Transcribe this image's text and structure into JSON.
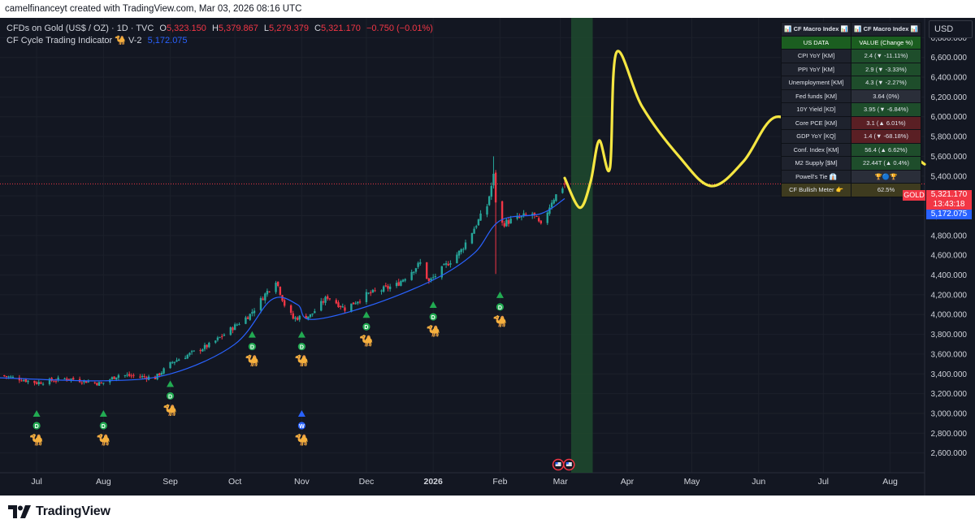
{
  "topbar": {
    "text": "camelfinanceyt created with TradingView.com, Mar 03, 2026 08:16 UTC"
  },
  "legend": {
    "symbol": "CFDs on Gold (US$ / OZ) · 1D · TVC",
    "o_label": "O",
    "o": "5,323.150",
    "h_label": "H",
    "h": "5,379.867",
    "l_label": "L",
    "l": "5,279.379",
    "c_label": "C",
    "c": "5,321.170",
    "change": "−0.750 (−0.01%)",
    "indicator_name": "CF Cycle Trading Indicator 🐪 V-2",
    "indicator_value": "5,172.075"
  },
  "currency": "USD",
  "price_tags": {
    "last": "5,321.170",
    "countdown": "13:43:18",
    "indicator": "5,172.075",
    "symbol": "GOLD"
  },
  "footer": {
    "brand": "TradingView"
  },
  "macro_table": {
    "header": [
      "📊 CF Macro Index 📊",
      "📊 CF Macro Index 📊"
    ],
    "subheader": [
      "US DATA",
      "VALUE (Change %)"
    ],
    "rows": [
      {
        "label": "CPI YoY [KM]",
        "value": "2.4 (▼ -11.11%)",
        "tone": "g"
      },
      {
        "label": "PPI YoY [KM]",
        "value": "2.9 (▼ -3.33%)",
        "tone": "g"
      },
      {
        "label": "Unemployment [KM]",
        "value": "4.3 (▼ -2.27%)",
        "tone": "g"
      },
      {
        "label": "Fed funds [KM]",
        "value": "3.64 (0%)",
        "tone": "n"
      },
      {
        "label": "10Y Yield [KD]",
        "value": "3.95 (▼ -6.84%)",
        "tone": "g"
      },
      {
        "label": "Core PCE [KM]",
        "value": "3.1 (▲ 6.01%)",
        "tone": "r"
      },
      {
        "label": "GDP YoY [KQ]",
        "value": "1.4 (▼ -68.18%)",
        "tone": "r"
      },
      {
        "label": "Conf. Index [KM]",
        "value": "56.4 (▲ 6.62%)",
        "tone": "g"
      },
      {
        "label": "M2 Supply [$M]",
        "value": "22.44T (▲ 0.4%)",
        "tone": "g"
      },
      {
        "label": "Powell's Tie 👔",
        "value": "🏆🔵🏆",
        "tone": "n"
      }
    ],
    "meter_label": "CF Bullish Meter 👉",
    "meter_value": "62.5%"
  },
  "colors": {
    "up": "#26a69a",
    "down": "#f23645",
    "indicator": "#2962ff",
    "forecast": "#f5e642",
    "shade": "#1f4a2e",
    "camel": "#f5a623"
  },
  "chart_data": {
    "type": "candlestick",
    "title": "",
    "xlabel": "",
    "ylabel": "",
    "ylim": [
      2400,
      7000
    ],
    "y_ticks": [
      2600,
      2800,
      3000,
      3200,
      3400,
      3600,
      3800,
      4000,
      4200,
      4400,
      4600,
      4800,
      5000,
      5200,
      5400,
      5600,
      5800,
      6000,
      6200,
      6400,
      6600,
      6800
    ],
    "x_tick_labels": [
      "Jul",
      "Aug",
      "Sep",
      "Oct",
      "Nov",
      "Dec",
      "2026",
      "Feb",
      "Mar",
      "Apr",
      "May",
      "Jun",
      "Jul",
      "Aug"
    ],
    "x_tick_dates": [
      "2025-07-01",
      "2025-08-01",
      "2025-09-01",
      "2025-10-01",
      "2025-11-01",
      "2025-12-01",
      "2026-01-01",
      "2026-02-01",
      "2026-03-01",
      "2026-04-01",
      "2026-05-01",
      "2026-06-01",
      "2026-07-01",
      "2026-08-01"
    ],
    "x_range": [
      "2025-06-14",
      "2026-08-17"
    ],
    "highlight_range": [
      "2026-03-06",
      "2026-03-16"
    ],
    "last_price": 5321.17,
    "indicator_last": 5172.075,
    "anchors": [
      {
        "date": "2025-06-14",
        "close": 3385
      },
      {
        "date": "2025-06-23",
        "close": 3350
      },
      {
        "date": "2025-07-01",
        "close": 3310
      },
      {
        "date": "2025-07-15",
        "close": 3355
      },
      {
        "date": "2025-07-31",
        "close": 3300
      },
      {
        "date": "2025-08-08",
        "close": 3390
      },
      {
        "date": "2025-08-25",
        "close": 3360
      },
      {
        "date": "2025-09-02",
        "close": 3520
      },
      {
        "date": "2025-09-20",
        "close": 3700
      },
      {
        "date": "2025-10-08",
        "close": 4000
      },
      {
        "date": "2025-10-20",
        "close": 4350
      },
      {
        "date": "2025-10-24",
        "close": 4100
      },
      {
        "date": "2025-10-28",
        "close": 3960
      },
      {
        "date": "2025-11-05",
        "close": 3990
      },
      {
        "date": "2025-11-13",
        "close": 4180
      },
      {
        "date": "2025-11-21",
        "close": 4060
      },
      {
        "date": "2025-12-01",
        "close": 4200
      },
      {
        "date": "2025-12-15",
        "close": 4300
      },
      {
        "date": "2025-12-26",
        "close": 4520
      },
      {
        "date": "2025-12-30",
        "close": 4330
      },
      {
        "date": "2026-01-14",
        "close": 4650
      },
      {
        "date": "2026-01-26",
        "close": 5100
      },
      {
        "date": "2026-01-29",
        "close": 5400
      },
      {
        "date": "2026-01-31",
        "close": 4900
      },
      {
        "date": "2026-02-06",
        "close": 4950
      },
      {
        "date": "2026-02-16",
        "close": 5020
      },
      {
        "date": "2026-02-20",
        "close": 4890
      },
      {
        "date": "2026-02-25",
        "close": 5150
      },
      {
        "date": "2026-03-03",
        "close": 5321
      }
    ],
    "indicator_series": [
      {
        "date": "2025-06-14",
        "value": 3360
      },
      {
        "date": "2025-08-01",
        "value": 3330
      },
      {
        "date": "2025-09-01",
        "value": 3400
      },
      {
        "date": "2025-10-01",
        "value": 3700
      },
      {
        "date": "2025-10-18",
        "value": 4150
      },
      {
        "date": "2025-10-30",
        "value": 4100
      },
      {
        "date": "2025-11-05",
        "value": 3950
      },
      {
        "date": "2025-12-01",
        "value": 4080
      },
      {
        "date": "2026-01-01",
        "value": 4350
      },
      {
        "date": "2026-01-20",
        "value": 4620
      },
      {
        "date": "2026-02-01",
        "value": 4950
      },
      {
        "date": "2026-02-20",
        "value": 5020
      },
      {
        "date": "2026-03-03",
        "value": 5172
      }
    ],
    "forecast_series": [
      {
        "date": "2026-03-03",
        "value": 5380
      },
      {
        "date": "2026-03-10",
        "value": 5080
      },
      {
        "date": "2026-03-15",
        "value": 5340
      },
      {
        "date": "2026-03-19",
        "value": 5760
      },
      {
        "date": "2026-03-24",
        "value": 5480
      },
      {
        "date": "2026-03-27",
        "value": 6650
      },
      {
        "date": "2026-04-08",
        "value": 6100
      },
      {
        "date": "2026-04-25",
        "value": 5600
      },
      {
        "date": "2026-05-10",
        "value": 5300
      },
      {
        "date": "2026-05-25",
        "value": 5550
      },
      {
        "date": "2026-06-08",
        "value": 5990
      },
      {
        "date": "2026-06-25",
        "value": 5900
      },
      {
        "date": "2026-07-12",
        "value": 6220
      },
      {
        "date": "2026-07-25",
        "value": 5780
      },
      {
        "date": "2026-08-08",
        "value": 5650
      },
      {
        "date": "2026-08-17",
        "value": 5520
      }
    ],
    "signals": [
      {
        "date": "2025-07-01",
        "arrow_price": 3000,
        "badge": "D"
      },
      {
        "date": "2025-08-01",
        "arrow_price": 3000,
        "badge": "D"
      },
      {
        "date": "2025-09-01",
        "arrow_price": 3300,
        "badge": "D"
      },
      {
        "date": "2025-10-09",
        "arrow_price": 3800,
        "badge": "D"
      },
      {
        "date": "2025-11-01",
        "arrow_price": 3800,
        "badge": "D"
      },
      {
        "date": "2025-11-01",
        "arrow_price": 3000,
        "badge": "W",
        "weekly": true
      },
      {
        "date": "2025-12-01",
        "arrow_price": 4000,
        "badge": "D"
      },
      {
        "date": "2026-01-01",
        "arrow_price": 4100,
        "badge": "D"
      },
      {
        "date": "2026-02-01",
        "arrow_price": 4200,
        "badge": "D"
      }
    ]
  }
}
